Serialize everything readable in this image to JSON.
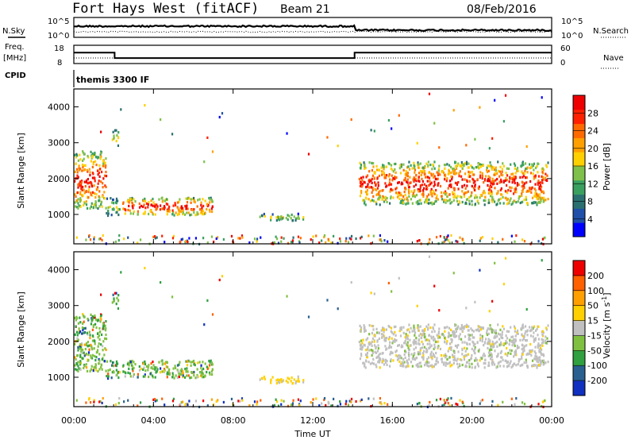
{
  "header": {
    "station": "Fort Hays West (fitACF)",
    "beam": "Beam 21",
    "date": "08/Feb/2016"
  },
  "top_strip": {
    "left_label": "N.Sky",
    "right_label": "N.Search",
    "left_ticks": [
      "10^5",
      "10^0"
    ],
    "right_ticks": [
      "10^5",
      "10^0"
    ]
  },
  "freq_strip": {
    "left_label": "Freq.",
    "left_unit": "[MHz]",
    "right_label": "Nave",
    "left_ticks": [
      "18",
      "8"
    ],
    "right_ticks": [
      "60",
      "0"
    ],
    "freq_values": [
      {
        "t": 0.0,
        "mhz": 14
      },
      {
        "t": 2.05,
        "mhz": 11
      },
      {
        "t": 14.1,
        "mhz": 14
      },
      {
        "t": 24.0,
        "mhz": 14
      }
    ]
  },
  "cpid": {
    "label": "CPID",
    "program": "themis 3300 IF"
  },
  "chart_data": [
    {
      "type": "heatmap",
      "name": "power",
      "ylabel": "Slant Range [km]",
      "yticks": [
        "1000",
        "2000",
        "3000",
        "4000"
      ],
      "colorbar_label": "Power [dB]",
      "colorbar_ticks": [
        "4",
        "8",
        "12",
        "16",
        "20",
        "24",
        "28"
      ],
      "colorbar_colors": [
        "#0000ff",
        "#1f4fa8",
        "#2a7070",
        "#3aa060",
        "#7fc04a",
        "#ffd000",
        "#ffa000",
        "#ff6a00",
        "#ff2000",
        "#ee0000"
      ],
      "ylim": [
        180,
        4500
      ],
      "xlim": [
        0,
        24
      ],
      "echo_regions": [
        {
          "t0": 0.0,
          "t1": 1.6,
          "r0": 1200,
          "r1": 2800,
          "level": "high"
        },
        {
          "t0": 1.6,
          "t1": 2.3,
          "r0": 1000,
          "r1": 1500,
          "level": "mid"
        },
        {
          "t0": 2.3,
          "t1": 7.0,
          "r0": 1000,
          "r1": 1500,
          "level": "high"
        },
        {
          "t0": 1.9,
          "t1": 2.2,
          "r0": 2900,
          "r1": 3400,
          "level": "mid"
        },
        {
          "t0": 9.3,
          "t1": 11.5,
          "r0": 850,
          "r1": 1050,
          "level": "mid"
        },
        {
          "t0": 14.3,
          "t1": 23.8,
          "r0": 1300,
          "r1": 2500,
          "level": "high"
        }
      ]
    },
    {
      "type": "heatmap",
      "name": "velocity",
      "ylabel": "Slant Range [km]",
      "yticks": [
        "1000",
        "2000",
        "3000",
        "4000"
      ],
      "colorbar_label": "Velocity [m s",
      "colorbar_label_sup": "-1",
      "colorbar_ticks": [
        "200",
        "100",
        "50",
        "15",
        "-15",
        "-50",
        "-100",
        "-200"
      ],
      "colorbar_colors": [
        "#1030c0",
        "#2a6090",
        "#30a040",
        "#80c040",
        "#c0c0c0",
        "#ffd000",
        "#ffa000",
        "#ff6000",
        "#ee0000"
      ],
      "ylim": [
        180,
        4500
      ],
      "xlim": [
        0,
        24
      ],
      "xlabel": "Time UT",
      "xticks": [
        "00:00",
        "04:00",
        "08:00",
        "12:00",
        "16:00",
        "20:00",
        "00:00"
      ]
    }
  ]
}
